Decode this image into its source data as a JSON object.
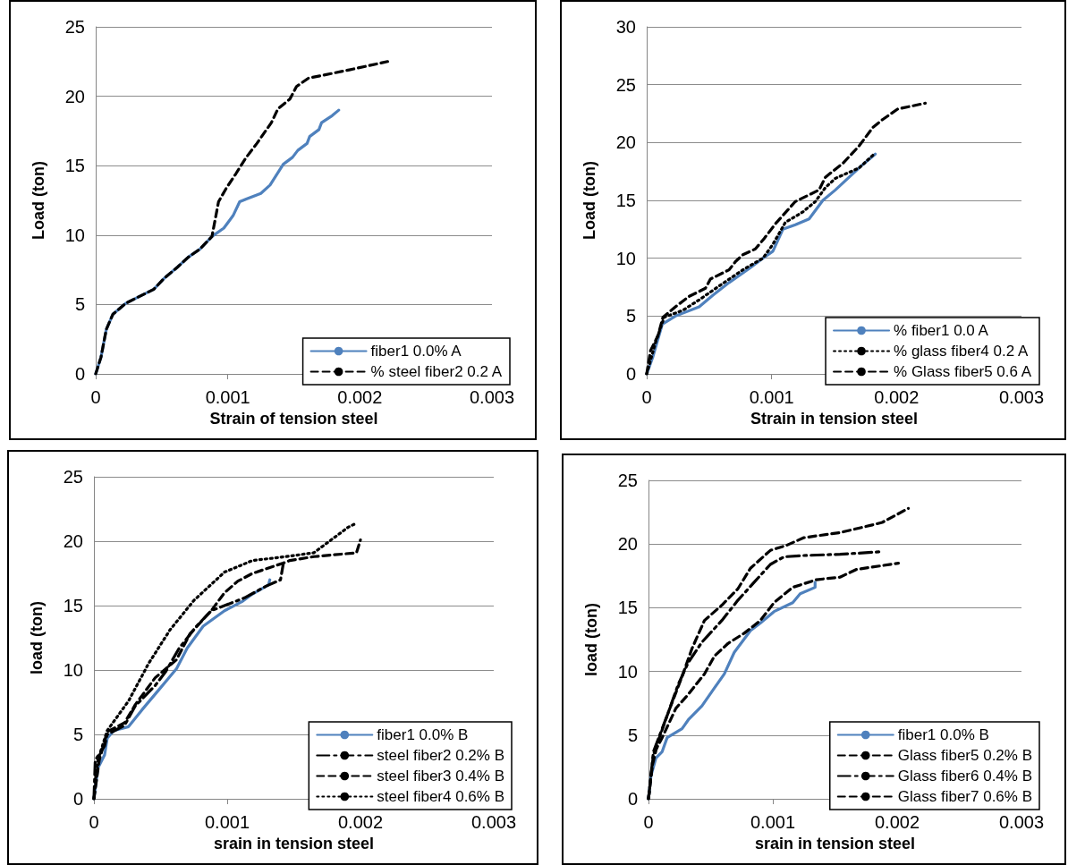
{
  "chart_data": [
    {
      "type": "line",
      "xlabel": "Strain of tension steel",
      "ylabel": "Load (ton)",
      "xlim": [
        0,
        0.003
      ],
      "xticks": [
        0,
        0.001,
        0.002,
        0.003
      ],
      "ylim": [
        0,
        25
      ],
      "yticks": [
        0,
        5,
        10,
        15,
        20,
        25
      ],
      "grid": "y",
      "legend": "bottom right",
      "series": [
        {
          "name": "fiber1 0.0% A",
          "color": "#4f81bd",
          "line_style": "solid",
          "x": [
            0,
            4e-05,
            8e-05,
            0.00013,
            0.00023,
            0.00044,
            0.00052,
            0.00062,
            0.0007,
            0.00079,
            0.00088,
            0.00097,
            0.00104,
            0.00109,
            0.00114,
            0.00125,
            0.00132,
            0.00142,
            0.00149,
            0.00153,
            0.0016,
            0.00162,
            0.00169,
            0.00171,
            0.00179,
            0.00184
          ],
          "values": [
            0,
            1.2,
            3.2,
            4.3,
            5.1,
            6.1,
            6.9,
            7.7,
            8.4,
            9.0,
            9.9,
            10.5,
            11.4,
            12.4,
            12.6,
            13.0,
            13.6,
            15.1,
            15.6,
            16.1,
            16.6,
            17.1,
            17.6,
            18.1,
            18.6,
            19.0
          ]
        },
        {
          "name": "% steel fiber2 0.2 A",
          "color": "#000000",
          "line_style": "dashed",
          "x": [
            0,
            4e-05,
            8e-05,
            0.00013,
            0.00023,
            0.00044,
            0.00052,
            0.00062,
            0.0007,
            0.00079,
            0.00088,
            0.0009,
            0.00093,
            0.00099,
            0.00106,
            0.00114,
            0.00122,
            0.00133,
            0.00138,
            0.00147,
            0.00152,
            0.00161,
            0.00192,
            0.00221
          ],
          "values": [
            0,
            1.2,
            3.2,
            4.3,
            5.1,
            6.1,
            6.9,
            7.7,
            8.4,
            9.0,
            9.9,
            10.9,
            12.4,
            13.4,
            14.4,
            15.6,
            16.6,
            18.1,
            19.1,
            19.8,
            20.7,
            21.3,
            21.9,
            22.5
          ]
        }
      ]
    },
    {
      "type": "line",
      "xlabel": "Strain in tension steel",
      "ylabel": "Load (ton)",
      "xlim": [
        0,
        0.003
      ],
      "xticks": [
        0,
        0.001,
        0.002,
        0.003
      ],
      "ylim": [
        0,
        30
      ],
      "yticks": [
        0,
        5,
        10,
        15,
        20,
        25,
        30
      ],
      "grid": "y",
      "legend": "bottom right",
      "series": [
        {
          "name": "% fiber1 0.0 A",
          "color": "#4f81bd",
          "line_style": "solid",
          "x": [
            0,
            5e-05,
            0.000125,
            0.00023,
            0.00042,
            0.00053,
            0.00066,
            0.00082,
            0.00093,
            0.00101,
            0.00109,
            0.00119,
            0.0013,
            0.00141,
            0.00151,
            0.00162,
            0.00173,
            0.00183
          ],
          "values": [
            0,
            1.5,
            4.3,
            5.0,
            5.8,
            6.8,
            7.9,
            9.1,
            10.0,
            10.6,
            12.5,
            12.9,
            13.4,
            15.0,
            15.9,
            17.0,
            18.1,
            19.0
          ]
        },
        {
          "name": "% glass fiber4 0.2 A",
          "color": "#000000",
          "line_style": "dotted",
          "x": [
            0,
            7e-05,
            0.00014,
            0.00029,
            0.00042,
            0.00058,
            0.00077,
            0.00093,
            0.00101,
            0.00111,
            0.00125,
            0.00135,
            0.00143,
            0.00151,
            0.0017,
            0.00183
          ],
          "values": [
            0,
            2.7,
            4.9,
            5.5,
            6.4,
            7.6,
            9.0,
            10.0,
            11.2,
            13.1,
            14.0,
            14.9,
            16.1,
            16.9,
            17.8,
            19.1
          ]
        },
        {
          "name": "% Glass fiber5 0.6 A",
          "color": "#000000",
          "line_style": "dashed",
          "x": [
            0,
            3e-05,
            9e-05,
            0.00013,
            0.00023,
            0.00034,
            0.00047,
            0.00051,
            0.00066,
            0.00071,
            0.00077,
            0.00087,
            0.00094,
            0.00104,
            0.00119,
            0.00138,
            0.00143,
            0.00157,
            0.0017,
            0.00181,
            0.00189,
            0.00201,
            0.00223
          ],
          "values": [
            0,
            2.0,
            3.3,
            4.9,
            5.8,
            6.7,
            7.4,
            8.2,
            9.0,
            9.7,
            10.3,
            10.8,
            11.7,
            13.1,
            14.9,
            15.9,
            17.0,
            18.2,
            19.7,
            21.3,
            22.0,
            22.9,
            23.4
          ]
        }
      ]
    },
    {
      "type": "line",
      "xlabel": "srain in tension steel",
      "ylabel": "load (ton)",
      "xlim": [
        0,
        0.003
      ],
      "xticks": [
        0,
        0.001,
        0.002,
        0.003
      ],
      "ylim": [
        0,
        25
      ],
      "yticks": [
        0,
        5,
        10,
        15,
        20,
        25
      ],
      "grid": "y",
      "legend": "bottom right",
      "series": [
        {
          "name": "fiber1 0.0% B",
          "color": "#4f81bd",
          "line_style": "solid",
          "x": [
            0,
            3e-05,
            8e-05,
            0.0001,
            0.00015,
            0.00026,
            0.00036,
            0.00049,
            0.00062,
            0.0007,
            0.00082,
            0.00098,
            0.00111,
            0.00119,
            0.00131,
            0.00132
          ],
          "values": [
            0,
            2.4,
            3.4,
            4.7,
            5.3,
            5.6,
            6.9,
            8.5,
            10.1,
            11.7,
            13.4,
            14.6,
            15.3,
            15.9,
            16.6,
            17.0
          ]
        },
        {
          "name": "steel fiber2 0.2% B",
          "color": "#000000",
          "line_style": "dashdot",
          "x": [
            0,
            1e-05,
            8e-05,
            0.0001,
            0.00023,
            0.00031,
            0.00046,
            0.00054,
            0.00064,
            0.00077,
            0.00088,
            0.00098,
            0.00113,
            0.00129,
            0.0014,
            0.00142
          ],
          "values": [
            0,
            3.0,
            4.1,
            5.0,
            5.7,
            7.2,
            8.8,
            9.9,
            11.7,
            13.4,
            14.6,
            15.0,
            15.6,
            16.5,
            17.0,
            18.2
          ]
        },
        {
          "name": "steel fiber3 0.4% B",
          "color": "#000000",
          "line_style": "dashed",
          "x": [
            0,
            4e-05,
            0.0001,
            0.00023,
            0.00031,
            0.00046,
            0.00062,
            0.00072,
            0.00088,
            0.00098,
            0.00108,
            0.00119,
            0.00142,
            0.00147,
            0.00165,
            0.00197,
            0.002
          ],
          "values": [
            0,
            3.0,
            5.2,
            5.9,
            7.3,
            9.4,
            10.8,
            12.8,
            14.6,
            16.0,
            16.9,
            17.5,
            18.3,
            18.5,
            18.8,
            19.1,
            20.1
          ]
        },
        {
          "name": "steel fiber4 0.6% B",
          "color": "#000000",
          "line_style": "dotted",
          "x": [
            0,
            3e-05,
            0.0001,
            0.00026,
            0.00041,
            0.00057,
            0.00075,
            0.00098,
            0.00119,
            0.00144,
            0.00165,
            0.00178,
            0.00191,
            0.00197
          ],
          "values": [
            0,
            3.0,
            5.3,
            7.6,
            10.5,
            13.1,
            15.4,
            17.6,
            18.5,
            18.8,
            19.1,
            20.1,
            21.1,
            21.4
          ]
        }
      ]
    },
    {
      "type": "line",
      "xlabel": "srain in tension steel",
      "ylabel": "load (ton)",
      "xlim": [
        0,
        0.003
      ],
      "xticks": [
        0,
        0.001,
        0.002,
        0.003
      ],
      "ylim": [
        0,
        25
      ],
      "yticks": [
        0,
        5,
        10,
        15,
        20,
        25
      ],
      "grid": "y",
      "legend": "bottom right",
      "series": [
        {
          "name": "fiber1 0.0% B",
          "color": "#4f81bd",
          "line_style": "solid",
          "x": [
            0,
            2e-05,
            6e-05,
            0.00011,
            0.00015,
            0.00027,
            0.00032,
            0.00043,
            0.00053,
            0.00061,
            0.00069,
            0.00082,
            0.0009,
            0.00101,
            0.00116,
            0.00122,
            0.00134,
            0.00134
          ],
          "values": [
            0,
            1.8,
            3.2,
            3.7,
            4.8,
            5.5,
            6.2,
            7.3,
            8.7,
            9.8,
            11.5,
            13.2,
            13.8,
            14.7,
            15.4,
            16.1,
            16.6,
            17.0
          ]
        },
        {
          "name": "Glass fiber5 0.2% B",
          "color": "#000000",
          "line_style": "dashed",
          "x": [
            0,
            4e-05,
            0.00011,
            0.00022,
            0.00032,
            0.00045,
            0.00053,
            0.00064,
            0.00077,
            0.0009,
            0.00101,
            0.00116,
            0.00135,
            0.00154,
            0.00167,
            0.00201
          ],
          "values": [
            0,
            3.5,
            4.8,
            7.1,
            8.2,
            9.8,
            11.2,
            12.2,
            13.0,
            14.0,
            15.4,
            16.6,
            17.2,
            17.4,
            18.0,
            18.5
          ]
        },
        {
          "name": "Glass fiber6 0.4% B",
          "color": "#000000",
          "line_style": "dashdot",
          "x": [
            0,
            4e-05,
            0.00016,
            0.00024,
            0.00032,
            0.00043,
            0.00059,
            0.00072,
            0.00085,
            0.00098,
            0.00109,
            0.00125,
            0.00154,
            0.00188
          ],
          "values": [
            0,
            3.7,
            6.8,
            9.0,
            10.7,
            12.3,
            14.0,
            15.6,
            17.0,
            18.4,
            19.0,
            19.1,
            19.2,
            19.4
          ]
        },
        {
          "name": "Glass fiber7 0.6% B",
          "color": "#000000",
          "line_style": "dashed",
          "x": [
            0,
            3e-05,
            8e-05,
            0.00016,
            0.00027,
            0.00035,
            0.00045,
            0.00059,
            0.00072,
            0.00082,
            0.00098,
            0.00111,
            0.00125,
            0.00154,
            0.0018,
            0.00188,
            0.00209
          ],
          "values": [
            0,
            2.6,
            4.6,
            6.8,
            9.6,
            11.8,
            14.0,
            15.2,
            16.5,
            18.1,
            19.5,
            19.9,
            20.5,
            20.9,
            21.5,
            21.7,
            22.8
          ]
        }
      ]
    }
  ]
}
